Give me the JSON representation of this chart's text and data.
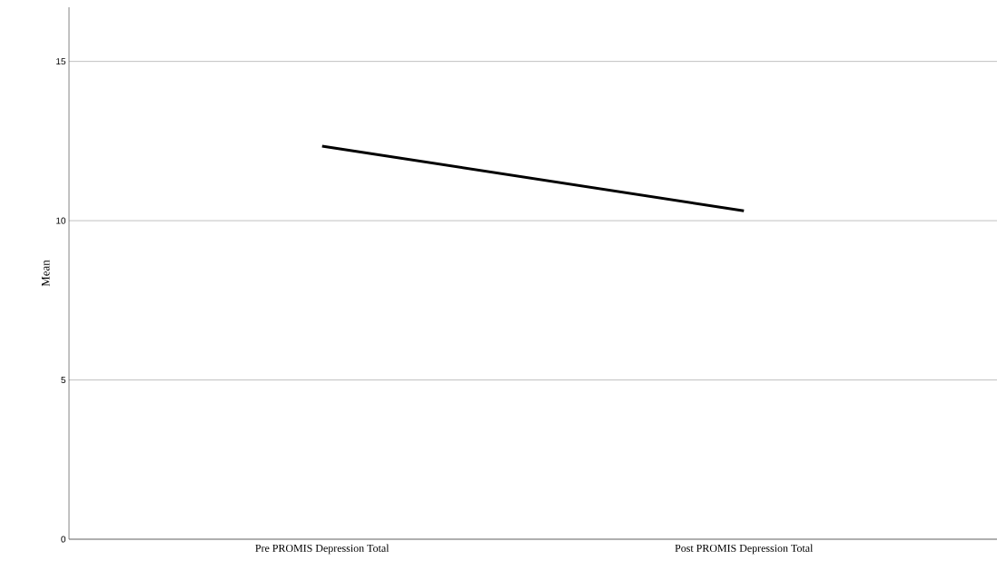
{
  "chart_data": {
    "type": "line",
    "ylabel": "Mean",
    "categories": [
      "Pre PROMIS Depression Total",
      "Post PROMIS Depression Total"
    ],
    "series": [
      {
        "color": "#000000",
        "values": [
          12.34,
          10.31
        ]
      }
    ],
    "ylim": [
      0,
      16.7
    ],
    "yticks": [
      0,
      5,
      10,
      15
    ],
    "grid": "y"
  }
}
